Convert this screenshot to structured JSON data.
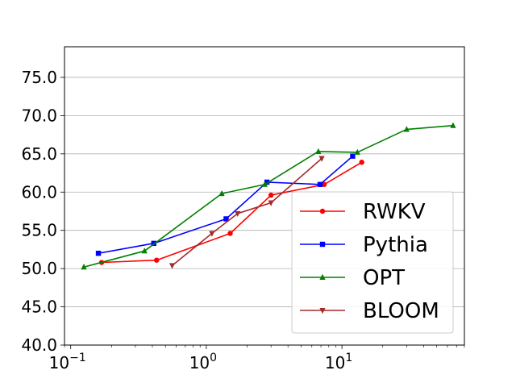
{
  "chart_data": {
    "type": "line",
    "xscale": "log",
    "xlim": [
      0.09,
      80
    ],
    "ylim": [
      40,
      79
    ],
    "x_ticks": [
      {
        "value": 0.1,
        "base": "10",
        "exp": "−1"
      },
      {
        "value": 1,
        "base": "10",
        "exp": "0"
      },
      {
        "value": 10,
        "base": "10",
        "exp": "1"
      }
    ],
    "y_ticks": [
      "40.0",
      "45.0",
      "50.0",
      "55.0",
      "60.0",
      "65.0",
      "70.0",
      "75.0"
    ],
    "grid": "horizontal",
    "legend_position": "bottom-right",
    "series": [
      {
        "name": "RWKV",
        "color": "#ff0000",
        "marker": "circle",
        "x": [
          0.169,
          0.43,
          1.5,
          3.0,
          7.4,
          14.0
        ],
        "y": [
          50.8,
          51.1,
          54.6,
          59.6,
          61.0,
          63.9
        ]
      },
      {
        "name": "Pythia",
        "color": "#0000ff",
        "marker": "square",
        "x": [
          0.16,
          0.41,
          1.4,
          2.8,
          6.9,
          12.0
        ],
        "y": [
          52.0,
          53.3,
          56.5,
          61.3,
          61.0,
          64.7
        ]
      },
      {
        "name": "OPT",
        "color": "#008000",
        "marker": "triangle-up",
        "x": [
          0.125,
          0.35,
          1.3,
          2.7,
          6.7,
          13.0,
          30.0,
          66.0
        ],
        "y": [
          50.2,
          52.3,
          59.8,
          61.0,
          65.3,
          65.2,
          68.2,
          68.7
        ]
      },
      {
        "name": "BLOOM",
        "color": "#a52a2a",
        "marker": "triangle-down",
        "x": [
          0.56,
          1.1,
          1.7,
          3.0,
          7.1
        ],
        "y": [
          50.4,
          54.6,
          57.2,
          58.6,
          64.4
        ]
      }
    ]
  }
}
